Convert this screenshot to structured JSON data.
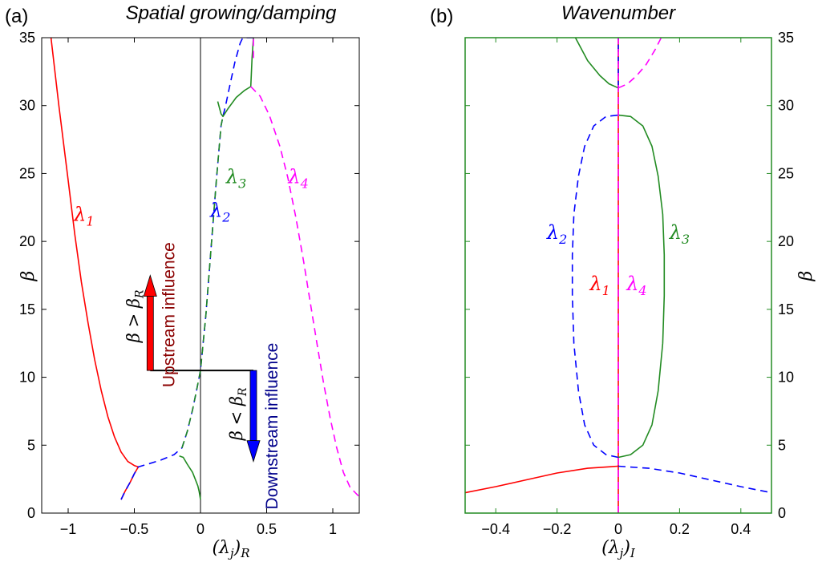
{
  "chart_data": [
    {
      "type": "line",
      "panel_label": "(a)",
      "title": "Spatial growing/damping",
      "xlabel": "(λj)R",
      "ylabel": "β",
      "xlim": [
        -1.2,
        1.2
      ],
      "ylim": [
        0,
        35
      ],
      "xticks": [
        -1,
        -0.5,
        0,
        0.5,
        1
      ],
      "xtick_labels": [
        "−1",
        "−0.5",
        "0",
        "0.5",
        "1"
      ],
      "yticks": [
        0,
        5,
        10,
        15,
        20,
        25,
        30,
        35
      ],
      "ytick_labels": [
        "0",
        "5",
        "10",
        "15",
        "20",
        "25",
        "30",
        "35"
      ],
      "series": [
        {
          "name": "λ1",
          "color": "#ff0000",
          "dash": "solid",
          "x": [
            -1.13,
            -1.07,
            -1.0,
            -0.95,
            -0.9,
            -0.85,
            -0.8,
            -0.75,
            -0.7,
            -0.65,
            -0.6,
            -0.55,
            -0.5,
            -0.47
          ],
          "y": [
            35,
            30,
            24.5,
            20.5,
            17,
            14,
            11.3,
            9.0,
            7.1,
            5.6,
            4.5,
            3.8,
            3.5,
            3.4
          ]
        },
        {
          "name": "λ1 (low)",
          "color": "#ff0000",
          "dash": "solid",
          "x": [
            -0.6,
            -0.57,
            -0.53,
            -0.5,
            -0.47
          ],
          "y": [
            1.0,
            1.6,
            2.3,
            2.9,
            3.4
          ]
        },
        {
          "name": "λ2",
          "color": "#0000ff",
          "dash": "dashed",
          "x": [
            -0.6,
            -0.57,
            -0.53,
            -0.5,
            -0.47,
            -0.4,
            -0.3,
            -0.2,
            -0.14,
            -0.1,
            -0.06,
            -0.03,
            0,
            0.04,
            0.08,
            0.12,
            0.155,
            0.17,
            0.19,
            0.22,
            0.26,
            0.3,
            0.32,
            0.33,
            0.33,
            0.34,
            0.38,
            0.41
          ],
          "y": [
            1.0,
            1.6,
            2.3,
            2.9,
            3.4,
            3.6,
            3.9,
            4.3,
            4.8,
            6,
            7.6,
            9.0,
            10.5,
            14.5,
            19.5,
            24.5,
            28.5,
            29.2,
            30.0,
            31.4,
            33.2,
            34.6,
            35,
            35,
            35,
            35,
            35,
            35
          ]
        },
        {
          "name": "λ3",
          "color": "#228b22",
          "dash": "solid",
          "x": [
            -0.16,
            -0.13,
            -0.1,
            -0.06,
            -0.04,
            -0.02,
            -0.01,
            0
          ],
          "y": [
            4.2,
            4.1,
            3.6,
            3.0,
            2.5,
            2.0,
            1.6,
            1.0
          ]
        },
        {
          "name": "λ3 (upper)",
          "color": "#228b22",
          "dash": "dashed",
          "x": [
            -0.14,
            -0.1,
            -0.06,
            -0.03,
            0,
            0.04,
            0.08,
            0.12,
            0.155,
            0.17
          ],
          "y": [
            4.8,
            6,
            7.6,
            9.0,
            10.5,
            14.5,
            19.5,
            24.5,
            28.5,
            29.2
          ]
        },
        {
          "name": "λ3 (loop)",
          "color": "#228b22",
          "dash": "solid",
          "x": [
            0.13,
            0.155,
            0.17,
            0.21,
            0.27,
            0.33,
            0.38,
            0.39,
            0.4
          ],
          "y": [
            30.3,
            29.4,
            29.2,
            29.8,
            30.6,
            31.1,
            31.4,
            33.5,
            35
          ]
        },
        {
          "name": "λ4",
          "color": "#ff00ff",
          "dash": "dashed",
          "x": [
            0.38,
            0.45,
            0.52,
            0.6,
            0.66,
            0.72,
            0.78,
            0.83,
            0.88,
            0.93,
            0.98,
            1.03,
            1.08,
            1.13,
            1.2
          ],
          "y": [
            31.4,
            30.7,
            29.3,
            27,
            24.7,
            21.8,
            18.5,
            15.5,
            12.5,
            9.6,
            7.0,
            4.8,
            3.0,
            1.9,
            1.2
          ]
        },
        {
          "name": "λ4 (top)",
          "color": "#ff00ff",
          "dash": "dashed",
          "x": [
            0.4,
            0.4
          ],
          "y": [
            33.5,
            35
          ]
        }
      ],
      "reference_vline": {
        "x": 0,
        "color": "#000000"
      },
      "annotations": {
        "labels": [
          {
            "text": "λ1",
            "x": -0.88,
            "y": 21.5,
            "color": "#ff0000"
          },
          {
            "text": "λ2",
            "x": 0.15,
            "y": 21.8,
            "color": "#0000ff"
          },
          {
            "text": "λ3",
            "x": 0.27,
            "y": 24.3,
            "color": "#228b22"
          },
          {
            "text": "λ4",
            "x": 0.74,
            "y": 24.3,
            "color": "#ff00ff"
          }
        ],
        "upstream_text": "Upstream influence",
        "downstream_text": "Downstream influence",
        "upstream_condition": "β > βR",
        "downstream_condition": "β < βR",
        "beta_r": 10.5,
        "upstream_arrow": {
          "x": -0.38,
          "y0": 10.5,
          "y1": 17.5,
          "color": "#ff0000"
        },
        "downstream_arrow": {
          "x": 0.4,
          "y0": 10.5,
          "y1": 3.8,
          "color": "#0000ff"
        },
        "upstream_text_color": "#8b0000",
        "downstream_text_color": "#00008b"
      }
    },
    {
      "type": "line",
      "panel_label": "(b)",
      "title": "Wavenumber",
      "xlabel": "(λj)I",
      "ylabel": "β",
      "xlim": [
        -0.5,
        0.5
      ],
      "ylim": [
        0,
        35
      ],
      "xticks": [
        -0.4,
        -0.2,
        0,
        0.2,
        0.4
      ],
      "xtick_labels": [
        "−0.4",
        "−0.2",
        "0",
        "0.2",
        "0.4"
      ],
      "yticks": [
        0,
        5,
        10,
        15,
        20,
        25,
        30,
        35
      ],
      "ytick_labels": [
        "0",
        "5",
        "10",
        "15",
        "20",
        "25",
        "30",
        "35"
      ],
      "frame_color": "#228b22",
      "series": [
        {
          "name": "λ1",
          "color": "#ff0000",
          "dash": "solid",
          "x": [
            -0.5,
            -0.4,
            -0.3,
            -0.2,
            -0.1,
            0
          ],
          "y": [
            1.5,
            1.95,
            2.45,
            2.95,
            3.3,
            3.45
          ]
        },
        {
          "name": "λ1 (axis)",
          "color": "#ff0000",
          "dash": "solid",
          "x": [
            0,
            0
          ],
          "y": [
            0,
            35
          ]
        },
        {
          "name": "λ2",
          "color": "#0000ff",
          "dash": "dashed",
          "x": [
            0,
            0.1,
            0.2,
            0.3,
            0.4,
            0.5
          ],
          "y": [
            3.45,
            3.3,
            2.95,
            2.45,
            1.95,
            1.5
          ]
        },
        {
          "name": "λ2 (loop)",
          "color": "#0000ff",
          "dash": "dashed",
          "x": [
            0,
            -0.04,
            -0.08,
            -0.11,
            -0.13,
            -0.145,
            -0.15,
            -0.15,
            -0.145,
            -0.13,
            -0.11,
            -0.08,
            -0.04,
            0
          ],
          "y": [
            4.1,
            4.3,
            5.0,
            6.5,
            9.0,
            12.5,
            16.0,
            19.0,
            22.0,
            24.8,
            27.0,
            28.5,
            29.2,
            29.3
          ]
        },
        {
          "name": "λ2 (top)",
          "color": "#0000ff",
          "dash": "dashed",
          "x": [
            0,
            0
          ],
          "y": [
            31.3,
            35
          ]
        },
        {
          "name": "λ3",
          "color": "#228b22",
          "dash": "solid",
          "x": [
            0,
            0.04,
            0.08,
            0.11,
            0.13,
            0.145,
            0.15,
            0.15,
            0.145,
            0.13,
            0.11,
            0.08,
            0.04,
            0
          ],
          "y": [
            4.1,
            4.3,
            5.0,
            6.5,
            9.0,
            12.5,
            16.0,
            19.0,
            22.0,
            24.8,
            27.0,
            28.5,
            29.2,
            29.3
          ]
        },
        {
          "name": "λ3 (top)",
          "color": "#228b22",
          "dash": "solid",
          "x": [
            -0.14,
            -0.1,
            -0.06,
            -0.03,
            0
          ],
          "y": [
            35,
            33.3,
            32.2,
            31.6,
            31.3
          ]
        },
        {
          "name": "λ4",
          "color": "#ff00ff",
          "dash": "dashed",
          "x": [
            0,
            0.03,
            0.06,
            0.09,
            0.12,
            0.14
          ],
          "y": [
            31.3,
            31.6,
            32.2,
            33.0,
            34.1,
            35
          ]
        },
        {
          "name": "λ4 (axis)",
          "color": "#ff00ff",
          "dash": "dashed",
          "x": [
            0,
            0
          ],
          "y": [
            0,
            35
          ]
        }
      ],
      "annotations": {
        "labels": [
          {
            "text": "λ2",
            "x": -0.2,
            "y": 20.2,
            "color": "#0000ff"
          },
          {
            "text": "λ1",
            "x": -0.06,
            "y": 16.4,
            "color": "#ff0000"
          },
          {
            "text": "λ4",
            "x": 0.06,
            "y": 16.4,
            "color": "#ff00ff"
          },
          {
            "text": "λ3",
            "x": 0.2,
            "y": 20.2,
            "color": "#228b22"
          }
        ]
      }
    }
  ]
}
